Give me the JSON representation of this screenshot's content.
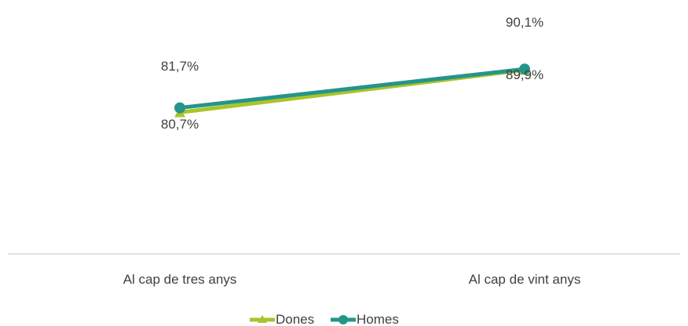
{
  "chart_data": {
    "type": "line",
    "categories": [
      "Al cap de tres anys",
      "Al cap de vint anys"
    ],
    "series": [
      {
        "name": "Dones",
        "values": [
          80.7,
          89.9
        ],
        "labels": [
          "80,7%",
          "89,9%"
        ],
        "color": "#a9c42a",
        "marker": "triangle"
      },
      {
        "name": "Homes",
        "values": [
          81.7,
          90.1
        ],
        "labels": [
          "81,7%",
          "90,1%"
        ],
        "color": "#24958b",
        "marker": "circle"
      }
    ],
    "title": "",
    "xlabel": "",
    "ylabel": "",
    "ylim": [
      50,
      95
    ],
    "grid": false,
    "legend_position": "bottom"
  }
}
